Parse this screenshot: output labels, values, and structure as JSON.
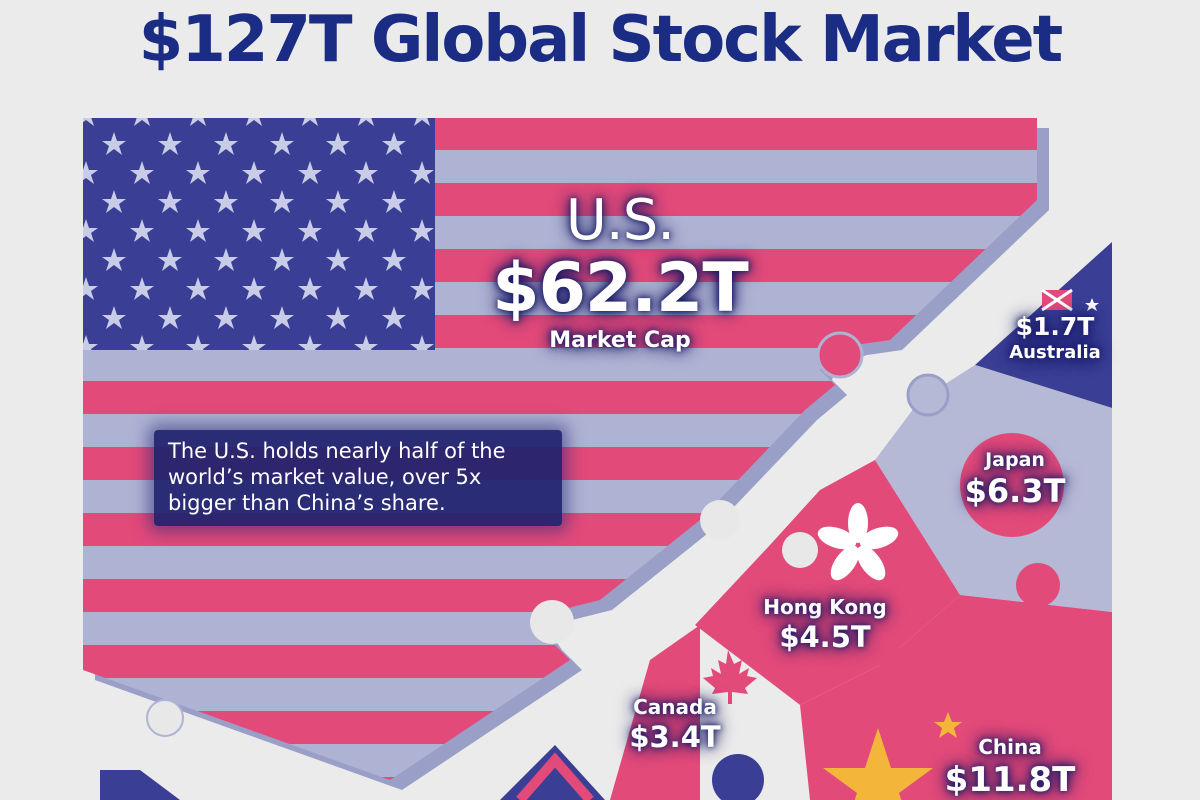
{
  "title": "$127T Global Stock Market",
  "us": {
    "name": "U.S.",
    "value": "$62.2T",
    "sublabel": "Market Cap"
  },
  "note": "The U.S. holds nearly half of the world’s market value, over 5x bigger than China’s share.",
  "regions": [
    {
      "key": "australia",
      "name": "Australia",
      "value": "$1.7T"
    },
    {
      "key": "japan",
      "name": "Japan",
      "value": "$6.3T"
    },
    {
      "key": "hong_kong",
      "name": "Hong Kong",
      "value": "$4.5T"
    },
    {
      "key": "canada",
      "name": "Canada",
      "value": "$3.4T"
    },
    {
      "key": "china",
      "name": "China",
      "value": "$11.8T"
    }
  ],
  "colors": {
    "background": "#ebebeb",
    "title": "#1a2c83",
    "flag_red": "#e24a7a",
    "flag_white": "#aeb3d3",
    "flag_blue": "#3a3f95",
    "china_red": "#e24a7a",
    "china_star": "#f4b63a",
    "japan_field": "#b6b9d6",
    "japan_disc": "#e24a7a"
  }
}
